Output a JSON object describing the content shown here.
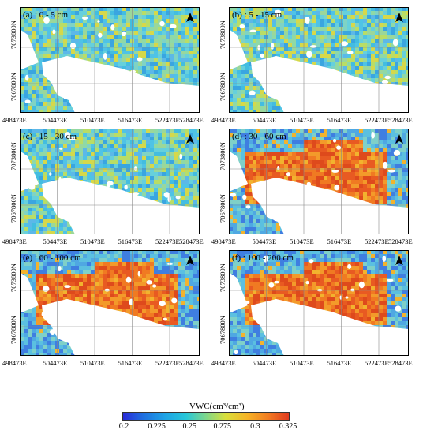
{
  "panels": [
    {
      "label": "(a) : 0 - 5 cm",
      "scheme": "shallow"
    },
    {
      "label": "(b) : 5 - 15 cm",
      "scheme": "shallow"
    },
    {
      "label": "(c) : 15 - 30 cm",
      "scheme": "shallow"
    },
    {
      "label": "(d) : 30 - 60 cm",
      "scheme": "deep"
    },
    {
      "label": "(e) : 60 - 100 cm",
      "scheme": "deep"
    },
    {
      "label": "(f) : 100 - 200 cm",
      "scheme": "deep"
    }
  ],
  "x_ticks": [
    "498473E",
    "504473E",
    "510473E",
    "516473E",
    "522473E",
    "528473E"
  ],
  "y_ticks": [
    "7073800N",
    "7067800N"
  ],
  "legend": {
    "title": "VWC(cm³/cm³)",
    "ticks": [
      "0.2",
      "0.225",
      "0.25",
      "0.275",
      "0.3",
      "0.325"
    ],
    "range": [
      0.2,
      0.325
    ]
  },
  "colors": {
    "low": "#2b2bd8",
    "mid": "#26c7d9",
    "high": "#e03a1f"
  },
  "north_icon": "north-arrow-icon"
}
